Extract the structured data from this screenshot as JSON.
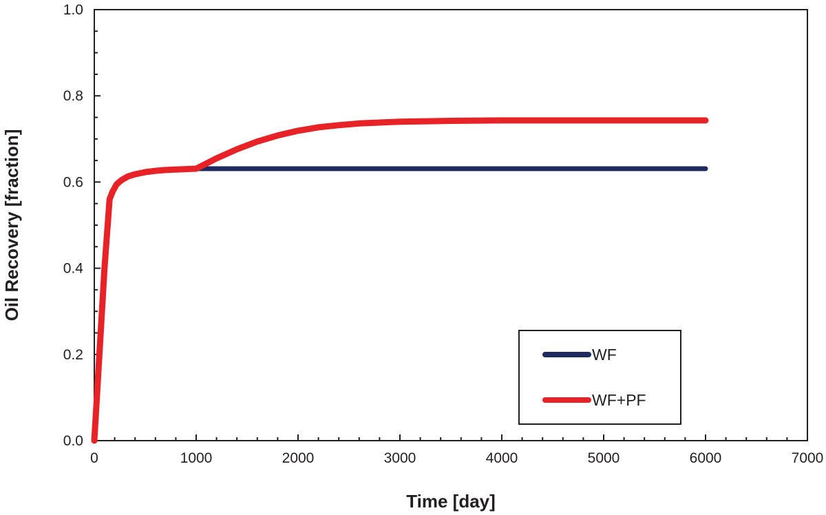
{
  "chart_data": {
    "type": "line",
    "title": "",
    "xlabel": "Time [day]",
    "ylabel": "Oil Recovery [fraction]",
    "xlim": [
      0,
      7000
    ],
    "ylim": [
      0,
      1.0
    ],
    "x_ticks": [
      "0",
      "1000",
      "2000",
      "3000",
      "4000",
      "5000",
      "6000",
      "7000"
    ],
    "y_ticks": [
      "0.0",
      "0.2",
      "0.4",
      "0.6",
      "0.8",
      "1.0"
    ],
    "legend_position": "bottom-right",
    "series": [
      {
        "name": "WF",
        "color": "#1f2a5e",
        "x": [
          0,
          50,
          100,
          150,
          180,
          220,
          270,
          330,
          400,
          500,
          600,
          700,
          800,
          900,
          1000,
          2000,
          3000,
          4000,
          5000,
          6000
        ],
        "y": [
          0.0,
          0.2,
          0.4,
          0.56,
          0.578,
          0.595,
          0.605,
          0.613,
          0.618,
          0.623,
          0.626,
          0.628,
          0.629,
          0.63,
          0.631,
          0.631,
          0.631,
          0.631,
          0.631,
          0.631
        ]
      },
      {
        "name": "WF+PF",
        "color": "#e82327",
        "x": [
          0,
          50,
          100,
          150,
          180,
          220,
          270,
          330,
          400,
          500,
          600,
          700,
          800,
          900,
          1000,
          1100,
          1200,
          1400,
          1600,
          1800,
          2000,
          2200,
          2400,
          2600,
          2800,
          3000,
          3500,
          4000,
          5000,
          6000
        ],
        "y": [
          0.0,
          0.2,
          0.4,
          0.56,
          0.578,
          0.595,
          0.605,
          0.613,
          0.618,
          0.623,
          0.626,
          0.628,
          0.629,
          0.63,
          0.631,
          0.643,
          0.655,
          0.676,
          0.694,
          0.708,
          0.719,
          0.727,
          0.732,
          0.736,
          0.738,
          0.74,
          0.742,
          0.743,
          0.743,
          0.743
        ]
      }
    ]
  }
}
